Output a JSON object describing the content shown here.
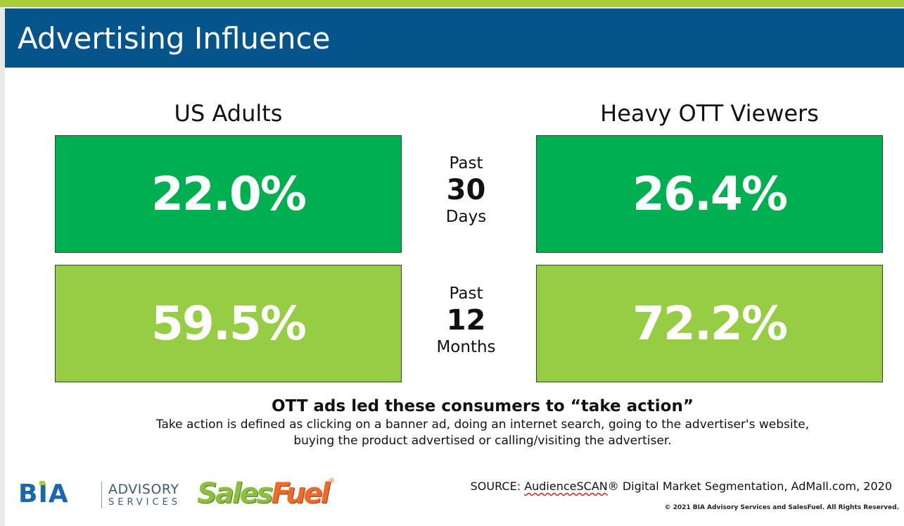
{
  "header": {
    "title": "Advertising Influence"
  },
  "columns": {
    "left_heading": "US Adults",
    "right_heading": "Heavy OTT Viewers"
  },
  "rows": [
    {
      "period_word": "Past",
      "period_number": "30",
      "period_unit": "Days",
      "us_adults": "22.0%",
      "heavy_ott": "26.4%"
    },
    {
      "period_word": "Past",
      "period_number": "12",
      "period_unit": "Months",
      "us_adults": "59.5%",
      "heavy_ott": "72.2%"
    }
  ],
  "takeaway": {
    "heading": "OTT ads led these consumers to “take action”",
    "definition": "Take action is defined as clicking on a banner ad, doing an internet search, going to the advertiser's website, buying the product advertised or calling/visiting the advertiser."
  },
  "logos": {
    "bia_mark": "BIA",
    "bia_line1": "ADVISORY",
    "bia_line2": "SERVICES",
    "salesfuel_part1": "Sales",
    "salesfuel_part2": "Fuel",
    "salesfuel_reg": "®"
  },
  "source": {
    "prefix": "SOURCE: ",
    "brand": "AudienceSCAN",
    "rest": "® Digital Market Segmentation, AdMall.com, 2020"
  },
  "copyright": "© 2021 BIA Advisory Services and SalesFuel. All Rights Reserved.",
  "colors": {
    "accent_stripe": "#a6cf38",
    "header_blue": "#05548c",
    "box_dark_green": "#00b050",
    "box_light_green": "#97cd45",
    "bia_blue": "#1b67ad",
    "salesfuel_green": "#8cbf3f",
    "salesfuel_orange": "#ec6a2b"
  }
}
